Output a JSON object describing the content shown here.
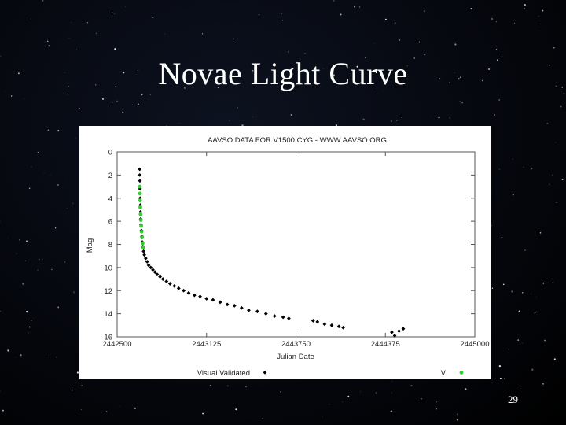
{
  "slide": {
    "title": "Novae Light Curve",
    "page_number": "29"
  },
  "chart_data": {
    "type": "scatter",
    "title": "AAVSO DATA FOR V1500 CYG - WWW.AAVSO.ORG",
    "xlabel": "Julian Date",
    "ylabel": "Mag",
    "xlim": [
      2442500,
      2445000
    ],
    "ylim": [
      16,
      0
    ],
    "y_inverted": true,
    "xticks": [
      "2442500",
      "2443125",
      "2443750",
      "2444375",
      "2445000"
    ],
    "yticks": [
      "0",
      "2",
      "4",
      "6",
      "8",
      "10",
      "12",
      "14",
      "16"
    ],
    "grid": false,
    "legend_position": "bottom",
    "colors": {
      "visual": "#000000",
      "v_band": "#33cc33"
    },
    "series": [
      {
        "name": "Visual Validated",
        "marker": "diamond",
        "points": [
          [
            2442658,
            1.5
          ],
          [
            2442658,
            2.0
          ],
          [
            2442659,
            2.5
          ],
          [
            2442660,
            3.2
          ],
          [
            2442661,
            4.0
          ],
          [
            2442662,
            4.6
          ],
          [
            2442663,
            5.2
          ],
          [
            2442665,
            5.8
          ],
          [
            2442667,
            6.3
          ],
          [
            2442670,
            6.8
          ],
          [
            2442673,
            7.3
          ],
          [
            2442676,
            7.8
          ],
          [
            2442680,
            8.2
          ],
          [
            2442685,
            8.6
          ],
          [
            2442690,
            8.9
          ],
          [
            2442700,
            9.2
          ],
          [
            2442710,
            9.5
          ],
          [
            2442720,
            9.8
          ],
          [
            2442735,
            10.0
          ],
          [
            2442750,
            10.2
          ],
          [
            2442765,
            10.4
          ],
          [
            2442780,
            10.6
          ],
          [
            2442800,
            10.8
          ],
          [
            2442820,
            11.0
          ],
          [
            2442845,
            11.2
          ],
          [
            2442870,
            11.4
          ],
          [
            2442900,
            11.6
          ],
          [
            2442930,
            11.8
          ],
          [
            2442965,
            12.0
          ],
          [
            2443000,
            12.2
          ],
          [
            2443040,
            12.4
          ],
          [
            2443080,
            12.5
          ],
          [
            2443125,
            12.7
          ],
          [
            2443170,
            12.8
          ],
          [
            2443220,
            13.0
          ],
          [
            2443270,
            13.2
          ],
          [
            2443320,
            13.3
          ],
          [
            2443370,
            13.5
          ],
          [
            2443420,
            13.7
          ],
          [
            2443480,
            13.8
          ],
          [
            2443540,
            14.0
          ],
          [
            2443600,
            14.2
          ],
          [
            2443660,
            14.3
          ],
          [
            2443700,
            14.4
          ],
          [
            2443870,
            14.6
          ],
          [
            2443900,
            14.7
          ],
          [
            2443950,
            14.9
          ],
          [
            2444000,
            15.0
          ],
          [
            2444050,
            15.1
          ],
          [
            2444080,
            15.2
          ],
          [
            2444420,
            15.6
          ],
          [
            2444440,
            15.9
          ],
          [
            2444470,
            15.5
          ],
          [
            2444500,
            15.3
          ]
        ]
      },
      {
        "name": "V",
        "marker": "star",
        "points": [
          [
            2442659,
            3.0
          ],
          [
            2442660,
            3.6
          ],
          [
            2442661,
            4.2
          ],
          [
            2442662,
            4.8
          ],
          [
            2442664,
            5.4
          ],
          [
            2442666,
            5.9
          ],
          [
            2442668,
            6.4
          ],
          [
            2442671,
            6.9
          ],
          [
            2442674,
            7.4
          ],
          [
            2442678,
            7.9
          ],
          [
            2442682,
            8.3
          ]
        ]
      }
    ]
  }
}
